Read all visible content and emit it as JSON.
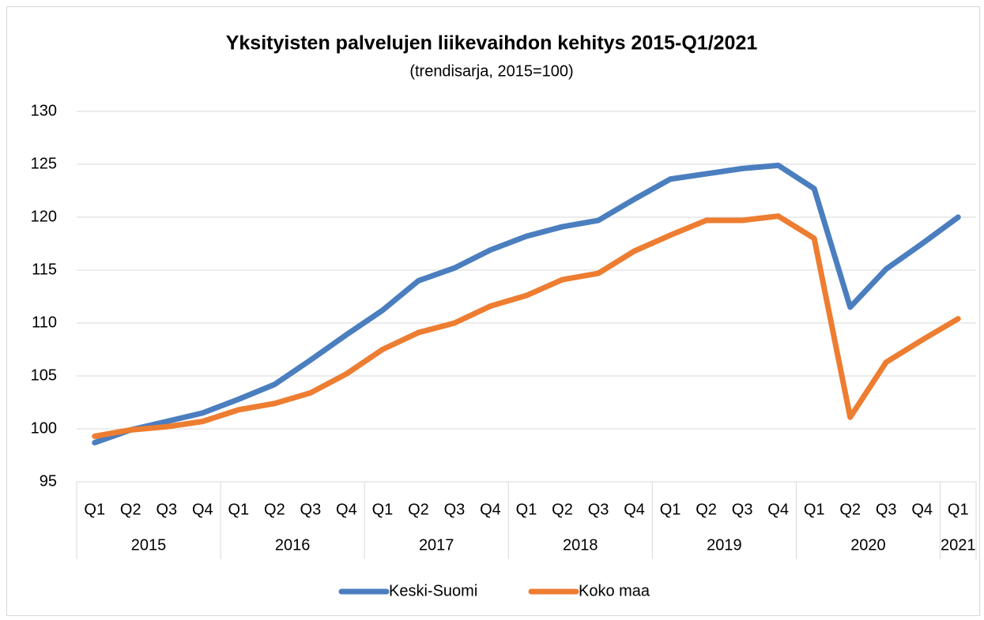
{
  "chart_data": {
    "type": "line",
    "title": "Yksityisten palvelujen liikevaihdon kehitys 2015-Q1/2021",
    "subtitle": "(trendisarja, 2015=100)",
    "groups": [
      {
        "name": "2015",
        "categories": [
          "Q1",
          "Q2",
          "Q3",
          "Q4"
        ]
      },
      {
        "name": "2016",
        "categories": [
          "Q1",
          "Q2",
          "Q3",
          "Q4"
        ]
      },
      {
        "name": "2017",
        "categories": [
          "Q1",
          "Q2",
          "Q3",
          "Q4"
        ]
      },
      {
        "name": "2018",
        "categories": [
          "Q1",
          "Q2",
          "Q3",
          "Q4"
        ]
      },
      {
        "name": "2019",
        "categories": [
          "Q1",
          "Q2",
          "Q3",
          "Q4"
        ]
      },
      {
        "name": "2020",
        "categories": [
          "Q1",
          "Q2",
          "Q3",
          "Q4"
        ]
      },
      {
        "name": "2021",
        "categories": [
          "Q1"
        ]
      }
    ],
    "series": [
      {
        "name": "Keski-Suomi",
        "color": "#4a7ebf",
        "values": [
          98.7,
          99.9,
          100.7,
          101.5,
          102.8,
          104.2,
          106.5,
          108.9,
          111.2,
          114.0,
          115.2,
          116.9,
          118.2,
          119.1,
          119.7,
          121.7,
          123.6,
          124.1,
          124.6,
          124.9,
          122.7,
          111.5,
          115.1,
          117.5,
          120.0
        ]
      },
      {
        "name": "Koko maa",
        "color": "#ed7d31",
        "values": [
          99.3,
          99.9,
          100.2,
          100.7,
          101.8,
          102.4,
          103.4,
          105.2,
          107.5,
          109.1,
          110.0,
          111.6,
          112.6,
          114.1,
          114.7,
          116.8,
          118.3,
          119.7,
          119.7,
          120.1,
          118.0,
          101.1,
          106.3,
          108.4,
          110.4
        ]
      }
    ],
    "ylim": [
      95,
      130
    ],
    "yticks": [
      95,
      100,
      105,
      110,
      115,
      120,
      125,
      130
    ],
    "grid": true,
    "legend": "bottom"
  }
}
